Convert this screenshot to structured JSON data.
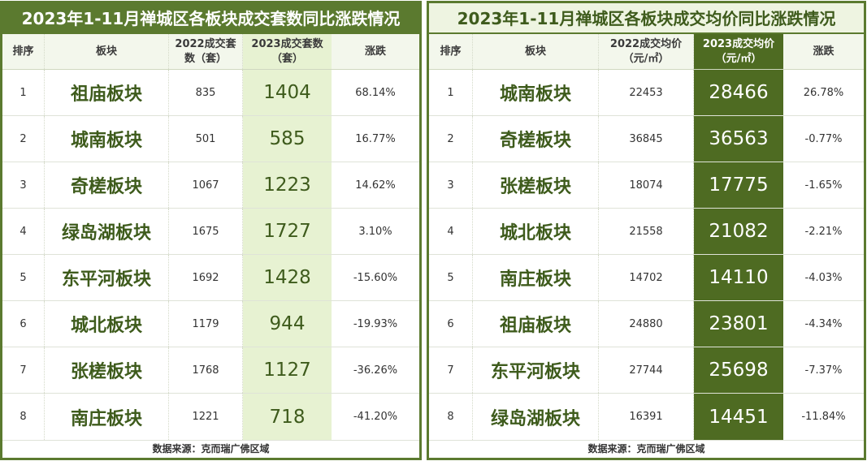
{
  "colors": {
    "dark_green": "#5b7a2f",
    "deep_green": "#4e6b22",
    "light_green": "#e7f2d2",
    "title_light": "#eef4e1",
    "name_green": "#3e5b1c"
  },
  "chart_data": [
    {
      "type": "table",
      "title": "2023年1-11月禅城区各板块成交套数同比涨跌情况",
      "columns": [
        "排序",
        "板块",
        "2022成交套数（套）",
        "2023成交套数（套）",
        "涨跌"
      ],
      "rows": [
        {
          "rank": 1,
          "block": "祖庙板块",
          "y2022": 835,
          "y2023": 1404,
          "change": "68.14%"
        },
        {
          "rank": 2,
          "block": "城南板块",
          "y2022": 501,
          "y2023": 585,
          "change": "16.77%"
        },
        {
          "rank": 3,
          "block": "奇槎板块",
          "y2022": 1067,
          "y2023": 1223,
          "change": "14.62%"
        },
        {
          "rank": 4,
          "block": "绿岛湖板块",
          "y2022": 1675,
          "y2023": 1727,
          "change": "3.10%"
        },
        {
          "rank": 5,
          "block": "东平河板块",
          "y2022": 1692,
          "y2023": 1428,
          "change": "-15.60%"
        },
        {
          "rank": 6,
          "block": "城北板块",
          "y2022": 1179,
          "y2023": 944,
          "change": "-19.93%"
        },
        {
          "rank": 7,
          "block": "张槎板块",
          "y2022": 1768,
          "y2023": 1127,
          "change": "-36.26%"
        },
        {
          "rank": 8,
          "block": "南庄板块",
          "y2022": 1221,
          "y2023": 718,
          "change": "-41.20%"
        }
      ],
      "source": "数据来源：克而瑞广佛区域"
    },
    {
      "type": "table",
      "title": "2023年1-11月禅城区各板块成交均价同比涨跌情况",
      "columns": [
        "排序",
        "板块",
        "2022成交均价（元/㎡）",
        "2023成交均价（元/㎡）",
        "涨跌"
      ],
      "rows": [
        {
          "rank": 1,
          "block": "城南板块",
          "y2022": 22453,
          "y2023": 28466,
          "change": "26.78%"
        },
        {
          "rank": 2,
          "block": "奇槎板块",
          "y2022": 36845,
          "y2023": 36563,
          "change": "-0.77%"
        },
        {
          "rank": 3,
          "block": "张槎板块",
          "y2022": 18074,
          "y2023": 17775,
          "change": "-1.65%"
        },
        {
          "rank": 4,
          "block": "城北板块",
          "y2022": 21558,
          "y2023": 21082,
          "change": "-2.21%"
        },
        {
          "rank": 5,
          "block": "南庄板块",
          "y2022": 14702,
          "y2023": 14110,
          "change": "-4.03%"
        },
        {
          "rank": 6,
          "block": "祖庙板块",
          "y2022": 24880,
          "y2023": 23801,
          "change": "-4.34%"
        },
        {
          "rank": 7,
          "block": "东平河板块",
          "y2022": 27744,
          "y2023": 25698,
          "change": "-7.37%"
        },
        {
          "rank": 8,
          "block": "绿岛湖板块",
          "y2022": 16391,
          "y2023": 14451,
          "change": "-11.84%"
        }
      ],
      "source": "数据来源：克而瑞广佛区域"
    }
  ]
}
